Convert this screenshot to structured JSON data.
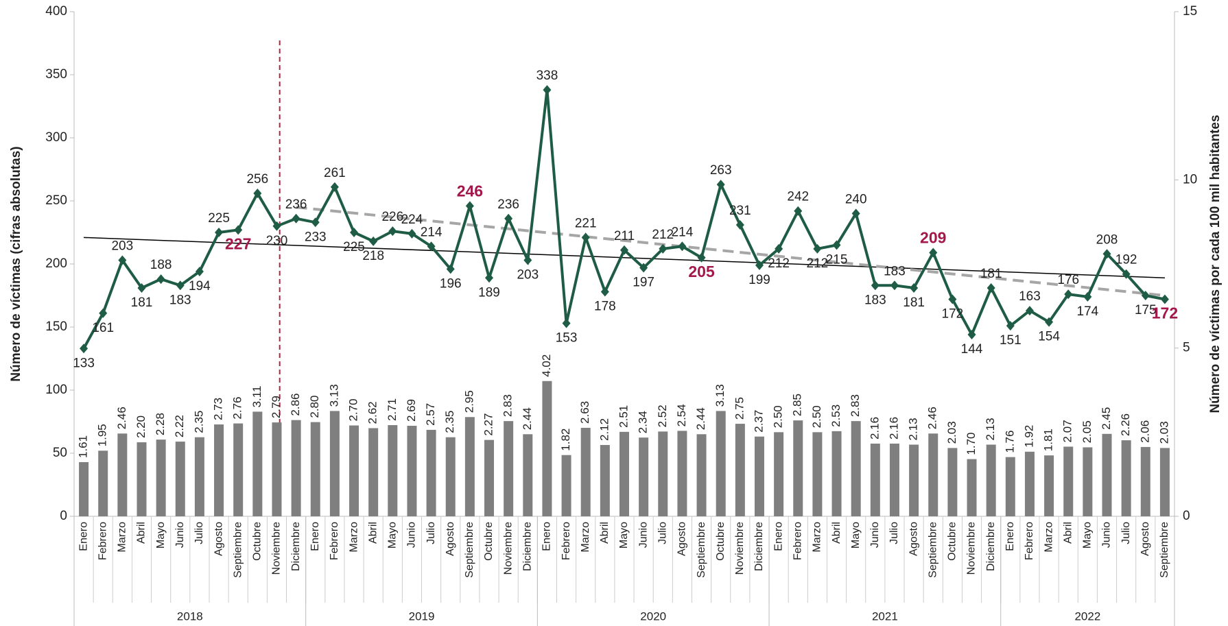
{
  "chart_data": {
    "type": "bar-line",
    "y_label": "Número de víctimas (cifras absolutas)",
    "y2_label": "Número de víctimas por cada 100 mil habitantes",
    "categories": [
      "Enero",
      "Febrero",
      "Marzo",
      "Abril",
      "Mayo",
      "Junio",
      "Julio",
      "Agosto",
      "Septiembre",
      "Octubre",
      "Noviembre",
      "Diciembre",
      "Enero",
      "Febrero",
      "Marzo",
      "Abril",
      "Mayo",
      "Junio",
      "Julio",
      "Agosto",
      "Septiembre",
      "Octubre",
      "Noviembre",
      "Diciembre",
      "Enero",
      "Febrero",
      "Marzo",
      "Abril",
      "Mayo",
      "Junio",
      "Julio",
      "Agosto",
      "Septiembre",
      "Octubre",
      "Noviembre",
      "Diciembre",
      "Enero",
      "Febrero",
      "Marzo",
      "Abril",
      "Mayo",
      "Junio",
      "Julio",
      "Agosto",
      "Septiembre",
      "Octubre",
      "Noviembre",
      "Diciembre",
      "Enero",
      "Febrero",
      "Marzo",
      "Abril",
      "Mayo",
      "Junio",
      "Julio",
      "Agosto",
      "Septiembre"
    ],
    "years": [
      "2018",
      "2019",
      "2020",
      "2021",
      "2022"
    ],
    "series": [
      {
        "type": "line",
        "color": "#1f5c45",
        "values": [
          133,
          161,
          203,
          181,
          188,
          183,
          194,
          225,
          227,
          256,
          230,
          236,
          233,
          261,
          225,
          218,
          226,
          224,
          214,
          196,
          246,
          189,
          236,
          203,
          338,
          153,
          221,
          178,
          211,
          197,
          212,
          214,
          205,
          263,
          231,
          199,
          212,
          242,
          212,
          215,
          240,
          183,
          183,
          181,
          209,
          172,
          144,
          181,
          151,
          163,
          154,
          176,
          174,
          208,
          192,
          175,
          172
        ]
      },
      {
        "type": "bar",
        "axis": "y2",
        "color": "#7f7f7f",
        "values": [
          1.61,
          1.95,
          2.46,
          2.2,
          2.28,
          2.22,
          2.35,
          2.73,
          2.76,
          3.11,
          2.79,
          2.86,
          2.8,
          3.13,
          2.7,
          2.62,
          2.71,
          2.69,
          2.57,
          2.35,
          2.95,
          2.27,
          2.83,
          2.44,
          4.02,
          1.82,
          2.63,
          2.12,
          2.51,
          2.34,
          2.52,
          2.54,
          2.44,
          3.13,
          2.75,
          2.37,
          2.5,
          2.85,
          2.5,
          2.53,
          2.83,
          2.16,
          2.16,
          2.13,
          2.46,
          2.03,
          1.7,
          2.13,
          1.76,
          1.92,
          1.81,
          2.07,
          2.05,
          2.45,
          2.26,
          2.06,
          2.03
        ],
        "value_labels": [
          "1.61",
          "1.95",
          "2.46",
          "2.20",
          "2.28",
          "2.22",
          "2.35",
          "2.73",
          "2.76",
          "3.11",
          "2.79",
          "2.86",
          "2.80",
          "3.13",
          "2.70",
          "2.62",
          "2.71",
          "2.69",
          "2.57",
          "2.35",
          "2.95",
          "2.27",
          "2.83",
          "2.44",
          "4.02",
          "1.82",
          "2.63",
          "2.12",
          "2.51",
          "2.34",
          "2.52",
          "2.54",
          "2.44",
          "3.13",
          "2.75",
          "2.37",
          "2.50",
          "2.85",
          "2.50",
          "2.53",
          "2.83",
          "2.16",
          "2.16",
          "2.13",
          "2.46",
          "2.03",
          "1.70",
          "2.13",
          "1.76",
          "1.92",
          "1.81",
          "2.07",
          "2.05",
          "2.45",
          "2.26",
          "2.06",
          "2.03"
        ]
      }
    ],
    "highlighted": [
      8,
      20,
      32,
      44,
      56
    ],
    "highlight_color": "#a3174a",
    "trendlines": [
      {
        "from": 0,
        "to": 56,
        "values": [
          221,
          189
        ],
        "color": "#000000",
        "dashed": false
      },
      {
        "from": 11,
        "to": 56,
        "values": [
          245,
          175
        ],
        "color": "#a6a6a6",
        "dashed": true
      }
    ],
    "reference_line_color": "#b0263f",
    "ylim": [
      0,
      400
    ],
    "yticks": [
      0,
      50,
      100,
      150,
      200,
      250,
      300,
      350,
      400
    ],
    "y2lim": [
      0,
      15
    ],
    "y2ticks": [
      0,
      5,
      10,
      15
    ]
  }
}
